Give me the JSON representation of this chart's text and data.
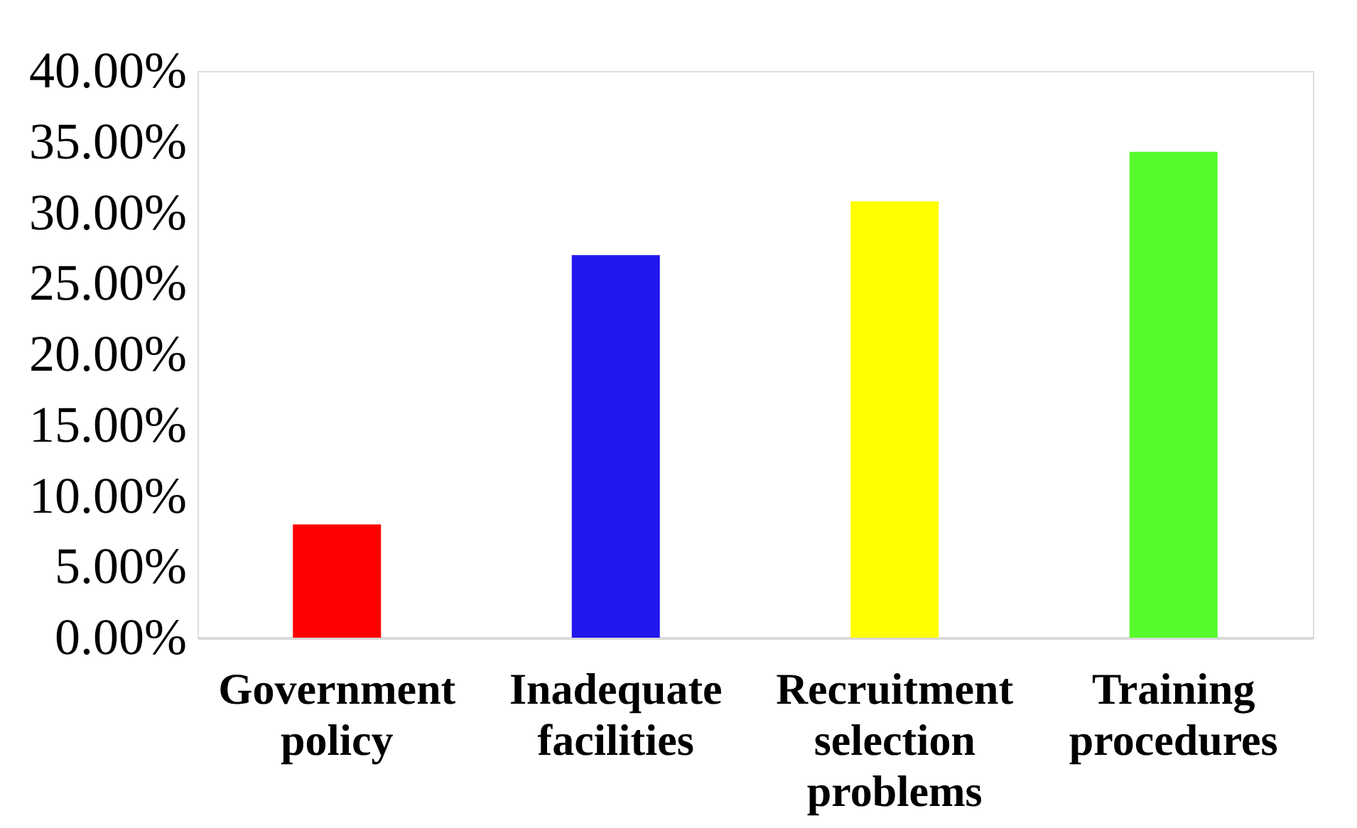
{
  "chart_data": {
    "type": "bar",
    "categories": [
      "Government policy",
      "Inadequate facilities",
      "Recruitment selection problems",
      "Training procedures"
    ],
    "values": [
      8.0,
      27.0,
      30.8,
      34.3
    ],
    "colors": [
      "#ff0000",
      "#2217ee",
      "#ffff00",
      "#55fb2a"
    ],
    "ylim": [
      0,
      40
    ],
    "yticks": [
      {
        "value": 0,
        "label": "0.00%"
      },
      {
        "value": 5,
        "label": "5.00%"
      },
      {
        "value": 10,
        "label": "10.00%"
      },
      {
        "value": 15,
        "label": "15.00%"
      },
      {
        "value": 20,
        "label": "20.00%"
      },
      {
        "value": 25,
        "label": "25.00%"
      },
      {
        "value": 30,
        "label": "30.00%"
      },
      {
        "value": 35,
        "label": "35.00%"
      },
      {
        "value": 40,
        "label": "40.00%"
      }
    ],
    "grid": false
  }
}
